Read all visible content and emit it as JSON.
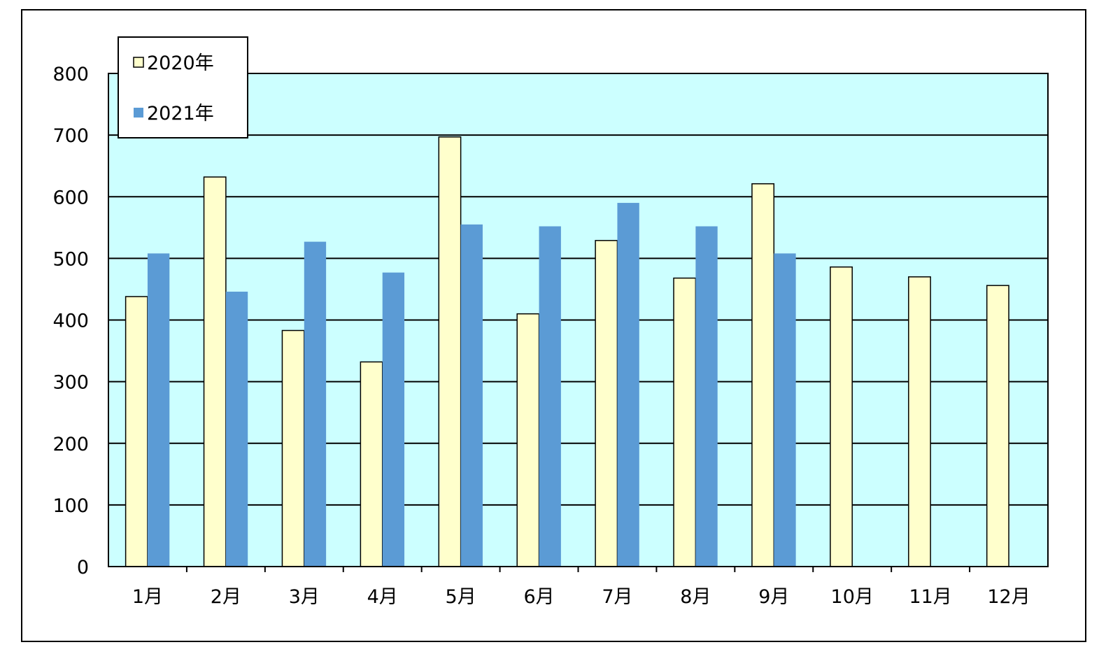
{
  "chart_data": {
    "type": "bar",
    "title": "",
    "xlabel": "",
    "ylabel": "",
    "categories": [
      "1月",
      "2月",
      "3月",
      "4月",
      "5月",
      "6月",
      "7月",
      "8月",
      "9月",
      "10月",
      "11月",
      "12月"
    ],
    "series": [
      {
        "name": "2020年",
        "color": "#FFFFCC",
        "values": [
          438,
          632,
          383,
          332,
          697,
          410,
          529,
          468,
          621,
          486,
          470,
          456
        ]
      },
      {
        "name": "2021年",
        "color": "#5B9BD5",
        "values": [
          508,
          446,
          527,
          477,
          555,
          552,
          590,
          552,
          508,
          null,
          null,
          null
        ]
      }
    ],
    "ylim": [
      0,
      800
    ],
    "yticks": [
      0,
      100,
      200,
      300,
      400,
      500,
      600,
      700,
      800
    ],
    "grid": true,
    "plot_background": "#CCFFFF",
    "legend_position": "top-left"
  }
}
